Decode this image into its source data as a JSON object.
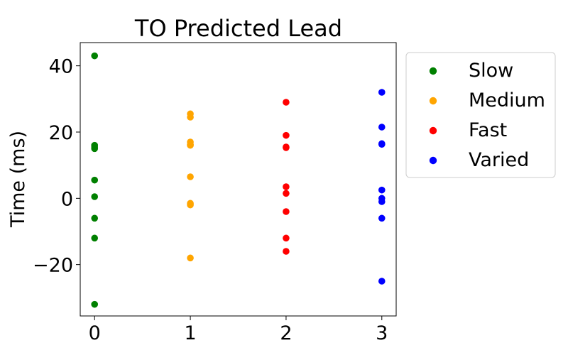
{
  "chart_data": {
    "type": "scatter",
    "title": "TO Predicted Lead",
    "xlabel": "",
    "ylabel": "Time (ms)",
    "xlim": [
      -0.15,
      3.15
    ],
    "ylim": [
      -35.5,
      47
    ],
    "xticks": [
      0,
      1,
      2,
      3
    ],
    "xtick_labels": [
      "0",
      "1",
      "2",
      "3"
    ],
    "yticks": [
      -20,
      0,
      20,
      40
    ],
    "ytick_labels": [
      "−20",
      "0",
      "20",
      "40"
    ],
    "grid": false,
    "legend_position": "outside-right-top",
    "series": [
      {
        "name": "Slow",
        "color": "#008000",
        "x": [
          0,
          0,
          0,
          0,
          0,
          0,
          0,
          0,
          0
        ],
        "y": [
          43,
          16,
          15,
          5.5,
          0.5,
          -6,
          -12,
          -32,
          15.5
        ]
      },
      {
        "name": "Medium",
        "color": "#FFA500",
        "x": [
          1,
          1,
          1,
          1,
          1,
          1,
          1,
          1,
          1
        ],
        "y": [
          25.5,
          24.5,
          17,
          16,
          6.5,
          -1.5,
          -2,
          -18,
          16.2
        ]
      },
      {
        "name": "Fast",
        "color": "#FF0000",
        "x": [
          2,
          2,
          2,
          2,
          2,
          2,
          2,
          2,
          2
        ],
        "y": [
          29,
          19,
          15.5,
          3.5,
          1.5,
          -4,
          -12,
          -16,
          15.3
        ]
      },
      {
        "name": "Varied",
        "color": "#0000FF",
        "x": [
          3,
          3,
          3,
          3,
          3,
          3,
          3,
          3,
          3
        ],
        "y": [
          32,
          21.5,
          16.5,
          2.5,
          0,
          -1,
          -6,
          -25,
          16.3
        ]
      }
    ]
  }
}
